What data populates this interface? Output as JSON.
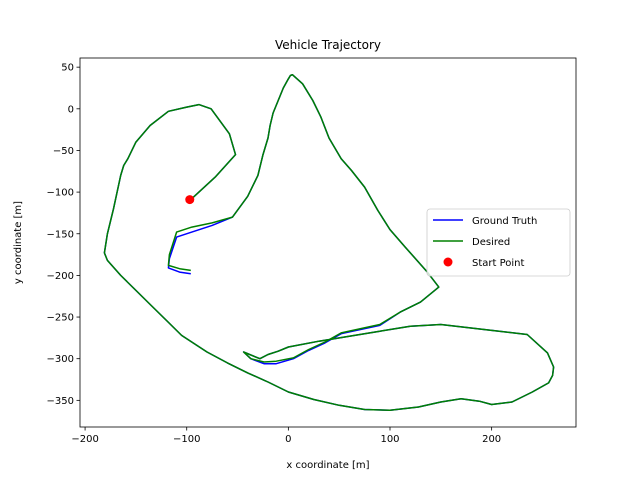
{
  "chart_data": {
    "type": "line",
    "title": "Vehicle Trajectory",
    "xlabel": "x coordinate [m]",
    "ylabel": "y coordinate [m]",
    "xlim": [
      -205,
      283
    ],
    "ylim": [
      -382,
      61
    ],
    "xticks": [
      -200,
      -100,
      0,
      100,
      200
    ],
    "yticks": [
      50,
      0,
      -50,
      -100,
      -150,
      -200,
      -250,
      -300,
      -350
    ],
    "grid": false,
    "legend_position": "center-right",
    "series": [
      {
        "name": "Ground Truth",
        "color": "#0000ff",
        "x": [
          -96,
          -72,
          -52,
          -58,
          -76,
          -88,
          -100,
          -118,
          -136,
          -150,
          -158,
          -162,
          -165,
          -172,
          -178,
          -181,
          -178,
          -165,
          -150,
          -135,
          -120,
          -105,
          -80,
          -60,
          -40,
          -20,
          0,
          25,
          50,
          75,
          100,
          128,
          150,
          170,
          188,
          200,
          220,
          240,
          256,
          260,
          261,
          255,
          235,
          200,
          150,
          120,
          90,
          60,
          30,
          0,
          -10,
          -20,
          -28,
          -44,
          -37,
          -24,
          -12,
          5,
          20,
          36,
          52,
          90,
          110,
          130,
          148,
          136,
          115,
          100,
          88,
          75,
          62,
          52,
          40,
          32,
          24,
          14,
          4,
          2,
          0,
          -5,
          -10,
          -15,
          -18,
          -20,
          -25,
          -30,
          -40,
          -55,
          -75,
          -95,
          -110,
          -117,
          -118,
          -107,
          -96
        ],
        "y": [
          -109,
          -82,
          -55,
          -30,
          0,
          5,
          2,
          -3,
          -20,
          -40,
          -60,
          -68,
          -80,
          -120,
          -150,
          -173,
          -182,
          -200,
          -218,
          -236,
          -254,
          -272,
          -292,
          -305,
          -317,
          -328,
          -340,
          -349,
          -356,
          -361,
          -362,
          -358,
          -352,
          -348,
          -351,
          -355,
          -352,
          -340,
          -329,
          -320,
          -310,
          -293,
          -271,
          -266,
          -259,
          -261,
          -267,
          -273,
          -279,
          -286,
          -291,
          -295,
          -300,
          -292,
          -300,
          -306,
          -306,
          -300,
          -290,
          -281,
          -270,
          -260,
          -244,
          -232,
          -214,
          -195,
          -166,
          -145,
          -122,
          -94,
          -74,
          -60,
          -35,
          -10,
          10,
          30,
          41,
          40,
          36,
          25,
          10,
          -5,
          -20,
          -35,
          -55,
          -80,
          -105,
          -130,
          -140,
          -148,
          -154,
          -180,
          -191,
          -196,
          -198
        ]
      },
      {
        "name": "Desired",
        "color": "#008000",
        "x": [
          -96,
          -72,
          -52,
          -58,
          -76,
          -88,
          -100,
          -118,
          -136,
          -150,
          -158,
          -162,
          -165,
          -172,
          -178,
          -181,
          -178,
          -165,
          -150,
          -135,
          -120,
          -105,
          -80,
          -60,
          -40,
          -20,
          0,
          25,
          50,
          75,
          100,
          128,
          150,
          170,
          188,
          200,
          220,
          240,
          256,
          260,
          261,
          255,
          235,
          200,
          150,
          120,
          90,
          60,
          30,
          0,
          -10,
          -20,
          -28,
          -44,
          -37,
          -24,
          -12,
          5,
          20,
          36,
          52,
          90,
          110,
          130,
          148,
          136,
          115,
          100,
          88,
          75,
          62,
          52,
          40,
          32,
          24,
          14,
          4,
          2,
          0,
          -5,
          -10,
          -15,
          -18,
          -20,
          -25,
          -30,
          -40,
          -55,
          -75,
          -95,
          -110,
          -117,
          -118,
          -107,
          -96
        ],
        "y": [
          -109,
          -82,
          -55,
          -30,
          0,
          5,
          2,
          -3,
          -20,
          -40,
          -60,
          -68,
          -80,
          -120,
          -150,
          -173,
          -182,
          -200,
          -218,
          -236,
          -254,
          -272,
          -292,
          -305,
          -317,
          -328,
          -340,
          -349,
          -356,
          -361,
          -362,
          -358,
          -352,
          -348,
          -351,
          -355,
          -352,
          -340,
          -329,
          -320,
          -310,
          -293,
          -271,
          -266,
          -259,
          -261,
          -267,
          -273,
          -279,
          -286,
          -291,
          -295,
          -300,
          -292,
          -300,
          -304,
          -303,
          -299,
          -289,
          -280,
          -269,
          -259,
          -244,
          -232,
          -214,
          -195,
          -166,
          -145,
          -122,
          -94,
          -74,
          -60,
          -35,
          -10,
          10,
          30,
          41,
          40,
          36,
          25,
          10,
          -5,
          -20,
          -35,
          -55,
          -80,
          -105,
          -130,
          -137,
          -142,
          -148,
          -175,
          -188,
          -192,
          -194
        ]
      }
    ],
    "markers": [
      {
        "name": "Start Point",
        "color": "#ff0000",
        "x": -97,
        "y": -109
      }
    ]
  }
}
